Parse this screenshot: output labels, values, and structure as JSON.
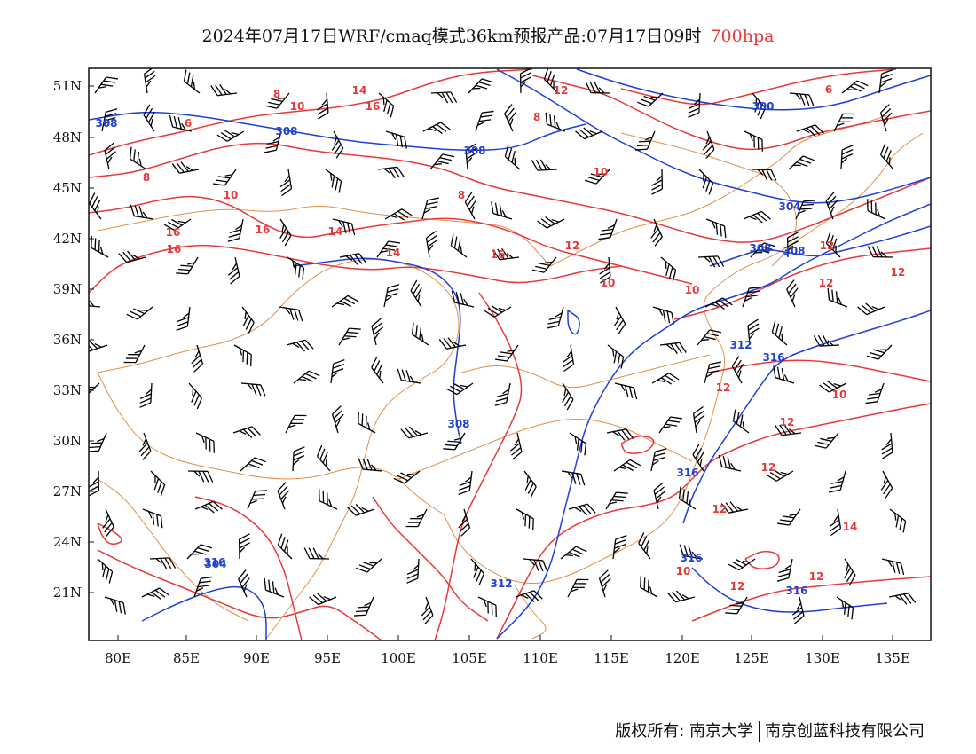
{
  "title": {
    "main": "2024年07月17日WRF/cmaq模式36km预报产品:07月17日09时",
    "level": "700hpa"
  },
  "colors": {
    "temperature": "#e8393a",
    "geopotential": "#1f3fd6",
    "boundary": "#e0904a",
    "wind": "#000000"
  },
  "axes": {
    "x_ticks": [
      "80E",
      "85E",
      "90E",
      "95E",
      "100E",
      "105E",
      "110E",
      "115E",
      "120E",
      "125E",
      "130E",
      "135E"
    ],
    "y_ticks": [
      "51N",
      "48N",
      "45N",
      "42N",
      "39N",
      "36N",
      "33N",
      "30N",
      "27N",
      "24N",
      "21N"
    ]
  },
  "temperature_labels": [
    "8",
    "6",
    "10",
    "14",
    "16",
    "12",
    "8",
    "6",
    "8",
    "10",
    "16",
    "14",
    "16",
    "16",
    "14",
    "16",
    "12",
    "8",
    "10",
    "10",
    "10",
    "12",
    "12",
    "12",
    "12",
    "12",
    "12",
    "12",
    "14",
    "12",
    "12",
    "10",
    "10"
  ],
  "geopotential_labels": [
    "308",
    "308",
    "308",
    "300",
    "304",
    "308",
    "308",
    "312",
    "316",
    "308",
    "316",
    "316",
    "316",
    "304",
    "312",
    "316"
  ],
  "footer": {
    "copyright": "版权所有: 南京大学",
    "company": "南京创蓝科技有限公司"
  }
}
